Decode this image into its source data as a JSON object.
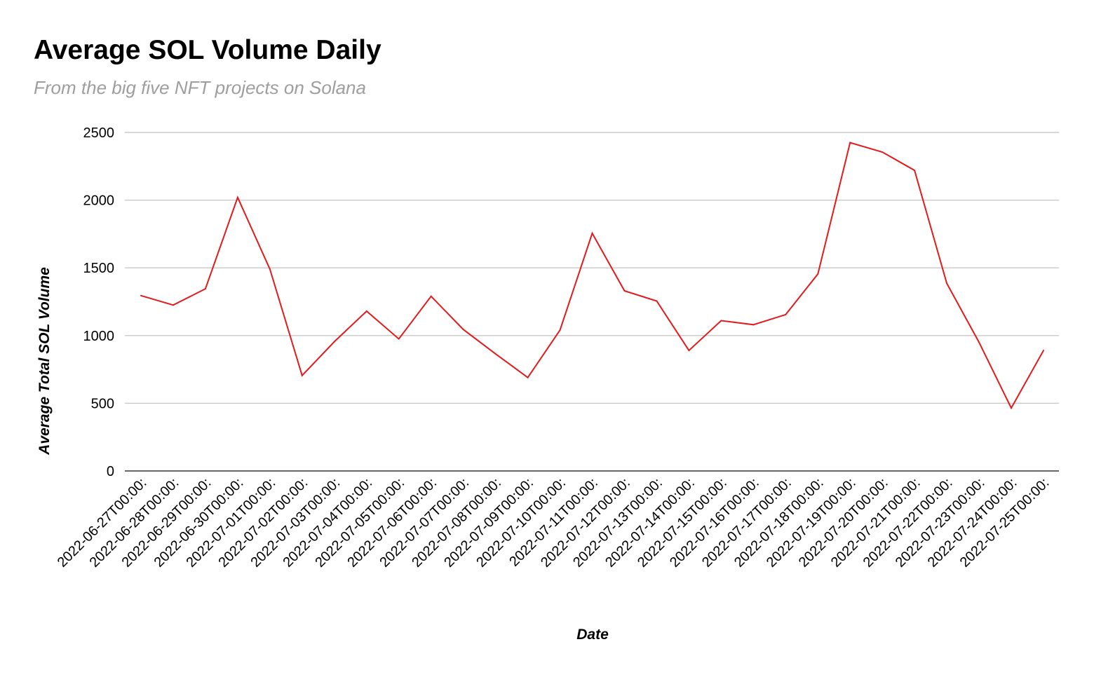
{
  "chart_data": {
    "type": "line",
    "title": "Average SOL Volume Daily",
    "subtitle": "From the big five NFT projects on Solana",
    "xlabel": "Date",
    "ylabel": "Average Total SOL Volume",
    "ylim": [
      0,
      2500
    ],
    "yticks": [
      "0",
      "500",
      "1000",
      "1500",
      "2000",
      "2500"
    ],
    "grid": true,
    "legend": "none",
    "line_color": "#e31a1c",
    "categories": [
      "2022-06-27T00:00:",
      "2022-06-28T00:00:",
      "2022-06-29T00:00:",
      "2022-06-30T00:00:",
      "2022-07-01T00:00:",
      "2022-07-02T00:00:",
      "2022-07-03T00:00:",
      "2022-07-04T00:00:",
      "2022-07-05T00:00:",
      "2022-07-06T00:00:",
      "2022-07-07T00:00:",
      "2022-07-08T00:00:",
      "2022-07-09T00:00:",
      "2022-07-10T00:00:",
      "2022-07-11T00:00:",
      "2022-07-12T00:00:",
      "2022-07-13T00:00:",
      "2022-07-14T00:00:",
      "2022-07-15T00:00:",
      "2022-07-16T00:00:",
      "2022-07-17T00:00:",
      "2022-07-18T00:00:",
      "2022-07-19T00:00:",
      "2022-07-20T00:00:",
      "2022-07-21T00:00:",
      "2022-07-22T00:00:",
      "2022-07-23T00:00:",
      "2022-07-24T00:00:",
      "2022-07-25T00:00:"
    ],
    "values": [
      1295,
      1225,
      1345,
      2020,
      1490,
      705,
      955,
      1180,
      975,
      1290,
      1045,
      865,
      690,
      1040,
      1755,
      1330,
      1255,
      890,
      1110,
      1080,
      1155,
      1455,
      2425,
      2355,
      2220,
      1385,
      950,
      465,
      890
    ]
  }
}
